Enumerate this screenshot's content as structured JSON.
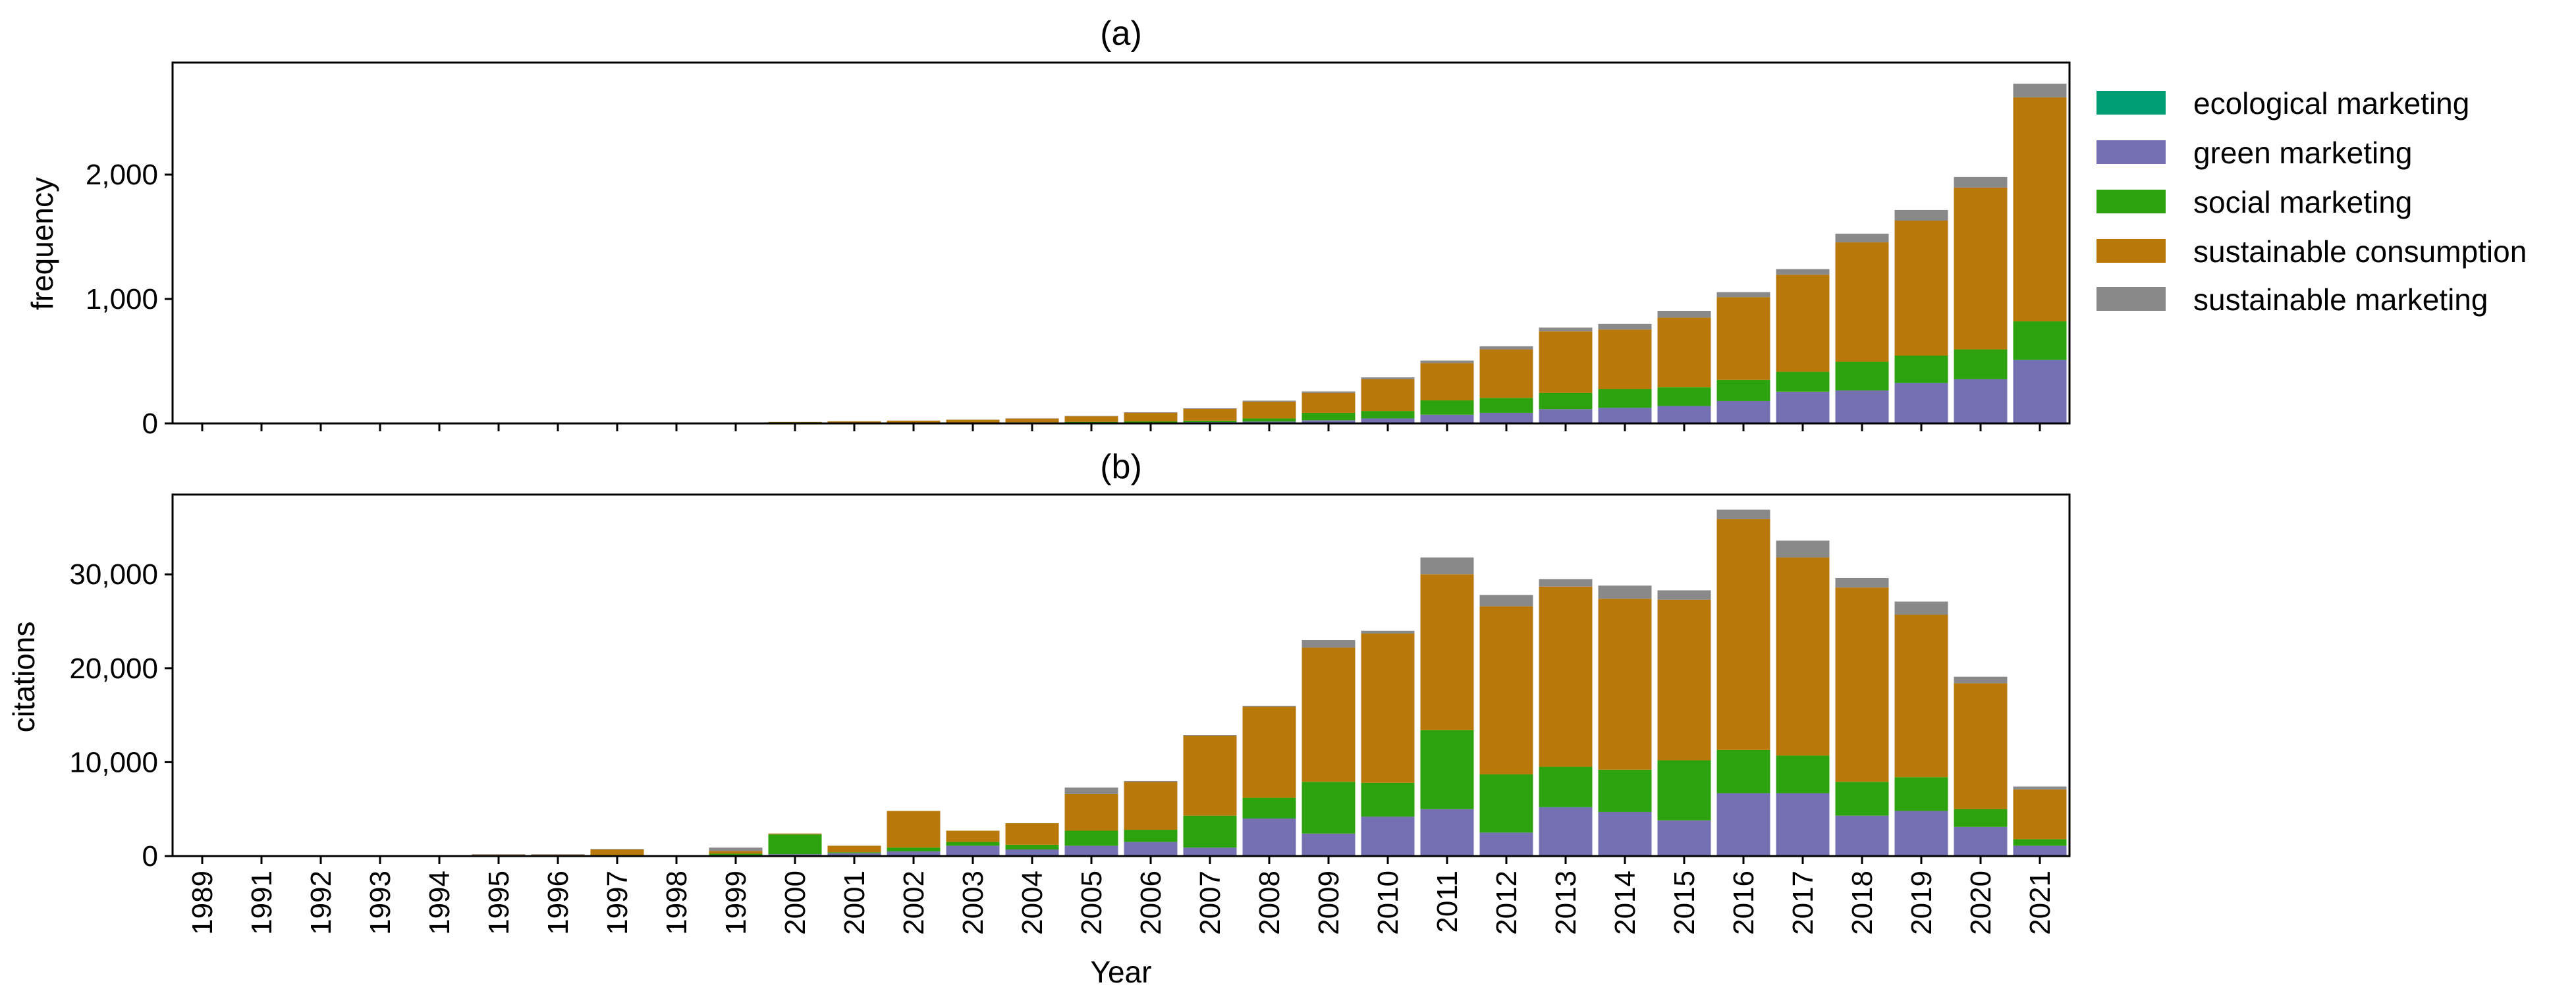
{
  "chart_data": [
    {
      "type": "bar",
      "stacked": true,
      "title": "(a)",
      "xlabel": "",
      "ylabel": "frequency",
      "ylim": [
        0,
        2900
      ],
      "yticks": [
        0,
        1000,
        2000
      ],
      "ytick_labels": [
        "0",
        "1,000",
        "2,000"
      ],
      "categories": [
        "1989",
        "1991",
        "1992",
        "1993",
        "1994",
        "1995",
        "1996",
        "1997",
        "1998",
        "1999",
        "2000",
        "2001",
        "2002",
        "2003",
        "2004",
        "2005",
        "2006",
        "2007",
        "2008",
        "2009",
        "2010",
        "2011",
        "2012",
        "2013",
        "2014",
        "2015",
        "2016",
        "2017",
        "2018",
        "2019",
        "2020",
        "2021"
      ],
      "series": [
        {
          "name": "ecological marketing",
          "values": [
            0,
            0,
            0,
            0,
            0,
            0,
            0,
            0,
            0,
            0,
            0,
            0,
            0,
            0,
            0,
            0,
            0,
            0,
            0,
            0,
            0,
            0,
            0,
            0,
            0,
            0,
            0,
            0,
            0,
            0,
            0,
            0
          ]
        },
        {
          "name": "green marketing",
          "values": [
            0,
            0,
            0,
            0,
            0,
            0,
            0,
            0,
            0,
            2,
            2,
            3,
            3,
            4,
            5,
            6,
            8,
            10,
            15,
            25,
            40,
            70,
            85,
            115,
            125,
            140,
            180,
            255,
            265,
            325,
            355,
            510
          ]
        },
        {
          "name": "social marketing",
          "values": [
            0,
            0,
            0,
            0,
            0,
            0,
            0,
            0,
            0,
            1,
            1,
            2,
            2,
            3,
            4,
            6,
            8,
            12,
            25,
            60,
            60,
            115,
            120,
            130,
            150,
            150,
            170,
            160,
            230,
            220,
            240,
            310
          ]
        },
        {
          "name": "sustainable consumption",
          "values": [
            1,
            0,
            0,
            0,
            0,
            0,
            1,
            1,
            1,
            4,
            8,
            12,
            17,
            22,
            30,
            45,
            70,
            95,
            135,
            160,
            255,
            300,
            390,
            495,
            480,
            560,
            665,
            780,
            960,
            1085,
            1300,
            1800
          ]
        },
        {
          "name": "sustainable marketing",
          "values": [
            0,
            0,
            0,
            0,
            0,
            0,
            0,
            0,
            0,
            0,
            1,
            1,
            1,
            1,
            2,
            3,
            4,
            5,
            8,
            12,
            15,
            20,
            25,
            30,
            45,
            55,
            40,
            45,
            70,
            85,
            85,
            110
          ]
        }
      ]
    },
    {
      "type": "bar",
      "stacked": true,
      "title": "(b)",
      "xlabel": "Year",
      "ylabel": "citations",
      "ylim": [
        0,
        38500
      ],
      "yticks": [
        0,
        10000,
        20000,
        30000
      ],
      "ytick_labels": [
        "0",
        "10,000",
        "20,000",
        "30,000"
      ],
      "categories": [
        "1989",
        "1991",
        "1992",
        "1993",
        "1994",
        "1995",
        "1996",
        "1997",
        "1998",
        "1999",
        "2000",
        "2001",
        "2002",
        "2003",
        "2004",
        "2005",
        "2006",
        "2007",
        "2008",
        "2009",
        "2010",
        "2011",
        "2012",
        "2013",
        "2014",
        "2015",
        "2016",
        "2017",
        "2018",
        "2019",
        "2020",
        "2021"
      ],
      "series": [
        {
          "name": "ecological marketing",
          "values": [
            0,
            0,
            0,
            0,
            0,
            0,
            0,
            0,
            0,
            0,
            0,
            0,
            0,
            0,
            0,
            0,
            0,
            0,
            0,
            0,
            0,
            0,
            0,
            0,
            0,
            0,
            0,
            0,
            0,
            0,
            0,
            0
          ]
        },
        {
          "name": "green marketing",
          "values": [
            0,
            0,
            0,
            0,
            0,
            0,
            0,
            0,
            0,
            100,
            200,
            300,
            500,
            1100,
            700,
            1100,
            1500,
            900,
            4000,
            2400,
            4200,
            5000,
            2500,
            5200,
            4700,
            3800,
            6700,
            6700,
            4300,
            4800,
            3100,
            1100
          ]
        },
        {
          "name": "social marketing",
          "values": [
            0,
            0,
            0,
            0,
            0,
            0,
            0,
            0,
            0,
            150,
            2100,
            100,
            400,
            400,
            500,
            1600,
            1300,
            3400,
            2200,
            5500,
            3600,
            8400,
            6200,
            4300,
            4500,
            6400,
            4600,
            4000,
            3600,
            3600,
            1900,
            700
          ]
        },
        {
          "name": "sustainable consumption",
          "values": [
            50,
            30,
            30,
            30,
            30,
            150,
            150,
            700,
            50,
            300,
            100,
            700,
            3900,
            1200,
            2300,
            3900,
            5100,
            8500,
            9700,
            14300,
            15900,
            16600,
            17900,
            19200,
            18200,
            17100,
            24600,
            21100,
            20700,
            17300,
            13400,
            5300
          ]
        },
        {
          "name": "sustainable marketing",
          "values": [
            0,
            0,
            0,
            0,
            0,
            50,
            50,
            50,
            0,
            350,
            0,
            0,
            0,
            0,
            0,
            700,
            100,
            100,
            100,
            800,
            300,
            1800,
            1200,
            800,
            1400,
            1000,
            1000,
            1800,
            1000,
            1400,
            700,
            300
          ]
        }
      ]
    }
  ],
  "legend": {
    "position": "right",
    "items": [
      {
        "label": "ecological marketing",
        "color": "#009E73"
      },
      {
        "label": "green marketing",
        "color": "#7570B3"
      },
      {
        "label": "social marketing",
        "color": "#2CA30E"
      },
      {
        "label": "sustainable consumption",
        "color": "#B8780A"
      },
      {
        "label": "sustainable marketing",
        "color": "#898989"
      }
    ]
  }
}
